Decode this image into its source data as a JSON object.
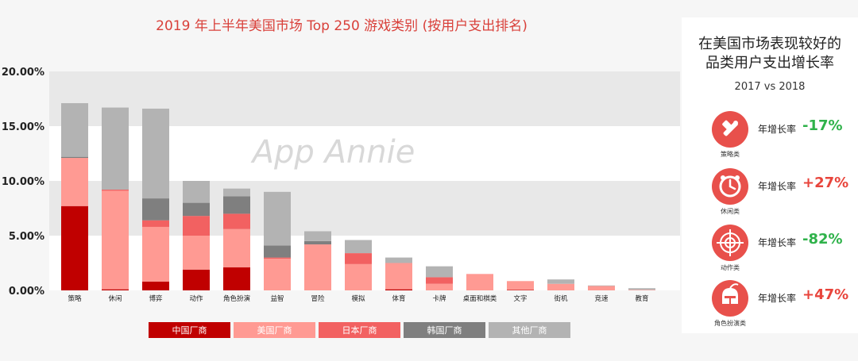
{
  "chart_data": {
    "type": "bar",
    "stacked": true,
    "title": "2019 年上半年美国市场 Top 250 游戏类别 (按用户支出排名)",
    "watermark": "App Annie",
    "categories": [
      "策略",
      "休闲",
      "博弈",
      "动作",
      "角色扮演",
      "益智",
      "冒险",
      "模拟",
      "体育",
      "卡牌",
      "桌面和棋类",
      "文字",
      "街机",
      "竞速",
      "教育"
    ],
    "y_ticks": [
      "0.00%",
      "5.00%",
      "10.00%",
      "15.00%",
      "20.00%"
    ],
    "ylim": [
      0,
      20
    ],
    "grid": "horizontal bands",
    "legend_position": "bottom",
    "series": [
      {
        "name": "中国厂商",
        "color": "#c00000",
        "values": [
          7.7,
          0.1,
          0.8,
          1.9,
          2.1,
          0,
          0,
          0,
          0.1,
          0,
          0,
          0.05,
          0,
          0,
          0
        ]
      },
      {
        "name": "美国厂商",
        "color": "#ff9a93",
        "values": [
          4.4,
          9.0,
          5.0,
          3.1,
          3.5,
          2.9,
          4.2,
          2.4,
          2.4,
          0.6,
          1.5,
          0.8,
          0.6,
          0.4,
          0.05
        ]
      },
      {
        "name": "日本厂商",
        "color": "#f26161",
        "values": [
          0,
          0.1,
          0.6,
          1.8,
          1.4,
          0.1,
          0,
          1.0,
          0,
          0.6,
          0,
          0,
          0,
          0,
          0
        ]
      },
      {
        "name": "韩国厂商",
        "color": "#7f7f7f",
        "values": [
          0.1,
          0,
          2.0,
          1.2,
          1.6,
          1.1,
          0.3,
          0,
          0,
          0,
          0,
          0,
          0,
          0,
          0
        ]
      },
      {
        "name": "其他厂商",
        "color": "#b3b3b3",
        "values": [
          4.9,
          7.5,
          8.2,
          2.0,
          0.7,
          4.9,
          0.9,
          1.2,
          0.5,
          1.0,
          0,
          0,
          0.4,
          0.05,
          0.15
        ]
      }
    ]
  },
  "side_panel": {
    "title_line1": "在美国市场表现较好的",
    "title_line2": "品类用户支出增长率",
    "subtitle": "2017 vs 2018",
    "growth_label": "年增长率",
    "rows": [
      {
        "category": "策略类",
        "icon": "strategy-icon",
        "value": "-17%",
        "color": "#2fb24a"
      },
      {
        "category": "休闲类",
        "icon": "casual-icon",
        "value": "+27%",
        "color": "#e8453c"
      },
      {
        "category": "动作类",
        "icon": "action-crosshair-icon",
        "value": "-82%",
        "color": "#2fb24a"
      },
      {
        "category": "角色扮演类",
        "icon": "rpg-helmet-icon",
        "value": "+47%",
        "color": "#e8453c"
      }
    ]
  }
}
